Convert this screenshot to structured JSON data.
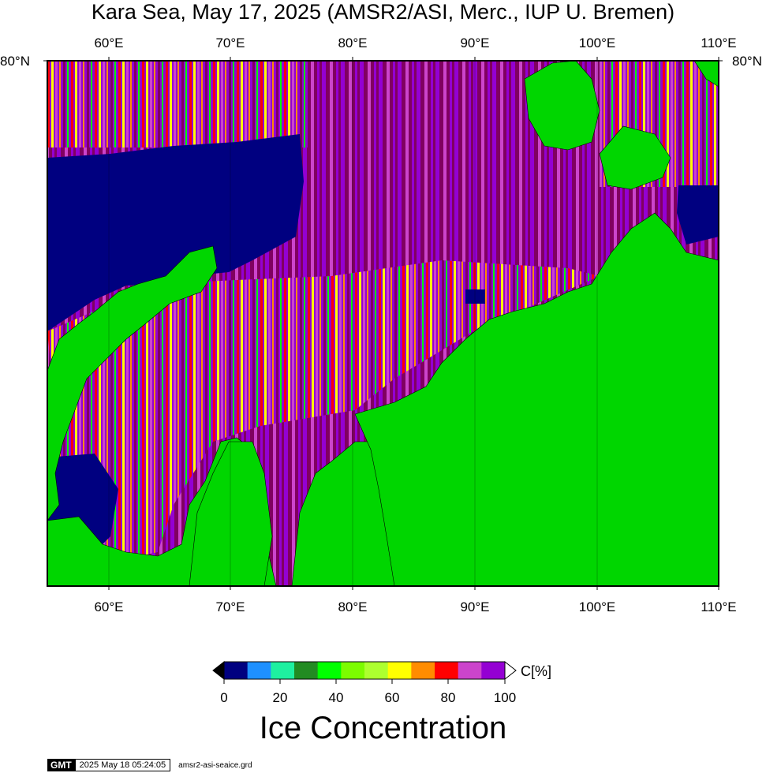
{
  "title": "Kara Sea, May 17, 2025 (AMSR2/ASI, Merc., IUP U. Bremen)",
  "axes": {
    "top_lon_labels": [
      "60°E",
      "70°E",
      "80°E",
      "90°E",
      "100°E",
      "110°E"
    ],
    "bottom_lon_labels": [
      "60°E",
      "70°E",
      "80°E",
      "90°E",
      "100°E",
      "110°E"
    ],
    "lat_label_left": "80°N",
    "lat_label_right": "80°N"
  },
  "colorbar": {
    "unit": "C[%]",
    "tick_labels": [
      "0",
      "20",
      "40",
      "60",
      "80",
      "100"
    ],
    "colors": [
      "#000080",
      "#1e90ff",
      "#1ef0a0",
      "#228b22",
      "#00ff00",
      "#7cfc00",
      "#adff2f",
      "#ffff00",
      "#ff8c00",
      "#ff0000",
      "#cc44cc",
      "#9400d3"
    ],
    "title": "Ice Concentration"
  },
  "map_colors": {
    "land": "#00d600",
    "open_water": "#000080",
    "high_ice": "#800060",
    "mid_ice": "#9400d3"
  },
  "footer": {
    "logo": "GMT",
    "timestamp": "2025 May 18 05:24:05",
    "filename": "amsr2-asi-seaice.grd"
  },
  "chart_data": {
    "type": "heatmap",
    "title": "Kara Sea, May 17, 2025 (AMSR2/ASI, Merc., IUP U. Bremen)",
    "xlabel": "",
    "ylabel": "",
    "xlim": [
      55,
      110
    ],
    "x_ticks": [
      60,
      70,
      80,
      90,
      100,
      110
    ],
    "value_label": "Ice Concentration",
    "value_unit": "C[%]",
    "value_range": [
      0,
      100
    ]
  }
}
